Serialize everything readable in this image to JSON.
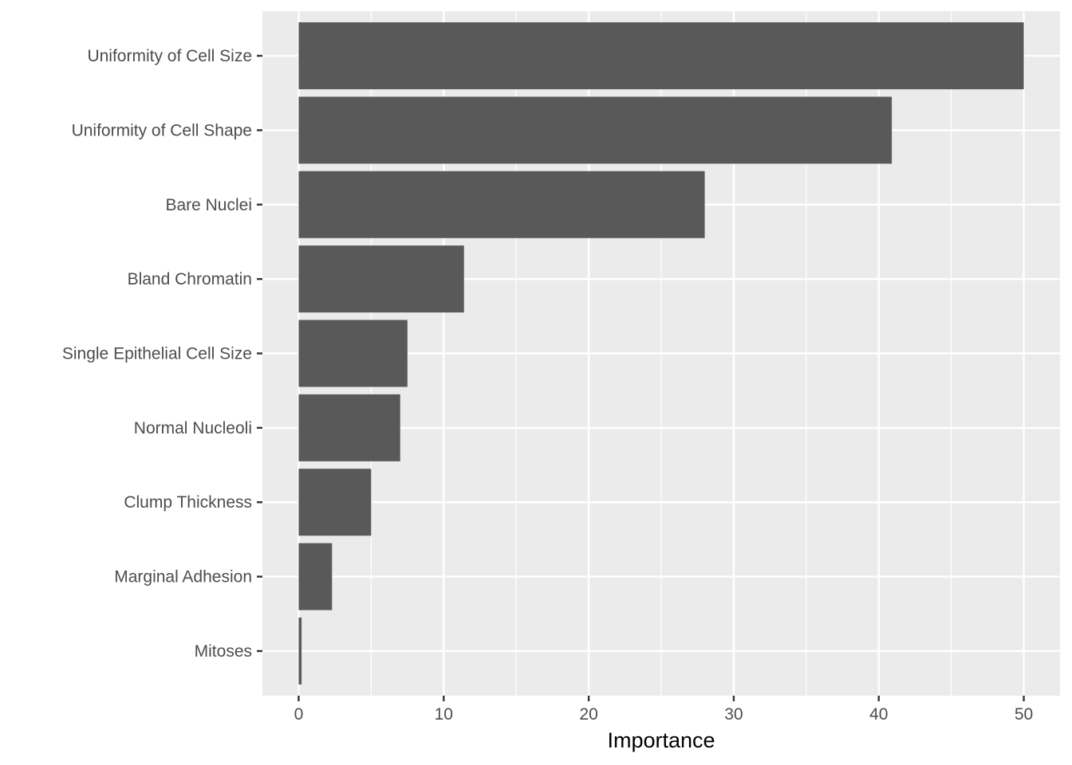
{
  "chart_data": {
    "type": "bar",
    "orientation": "horizontal",
    "categories": [
      "Uniformity of Cell Size",
      "Uniformity of Cell Shape",
      "Bare Nuclei",
      "Bland Chromatin",
      "Single Epithelial Cell Size",
      "Normal Nucleoli",
      "Clump Thickness",
      "Marginal Adhesion",
      "Mitoses"
    ],
    "values": [
      50.0,
      40.9,
      28.0,
      11.4,
      7.5,
      7.0,
      5.0,
      2.3,
      0.2
    ],
    "xlabel": "Importance",
    "ylabel": "",
    "xlim": [
      -2.5,
      52.5
    ],
    "xticks": [
      0,
      10,
      20,
      30,
      40,
      50
    ],
    "grid": true,
    "colors": {
      "panel_background": "#ebebeb",
      "grid": "#ffffff",
      "bar_fill": "#595959",
      "tick": "#333333"
    }
  }
}
